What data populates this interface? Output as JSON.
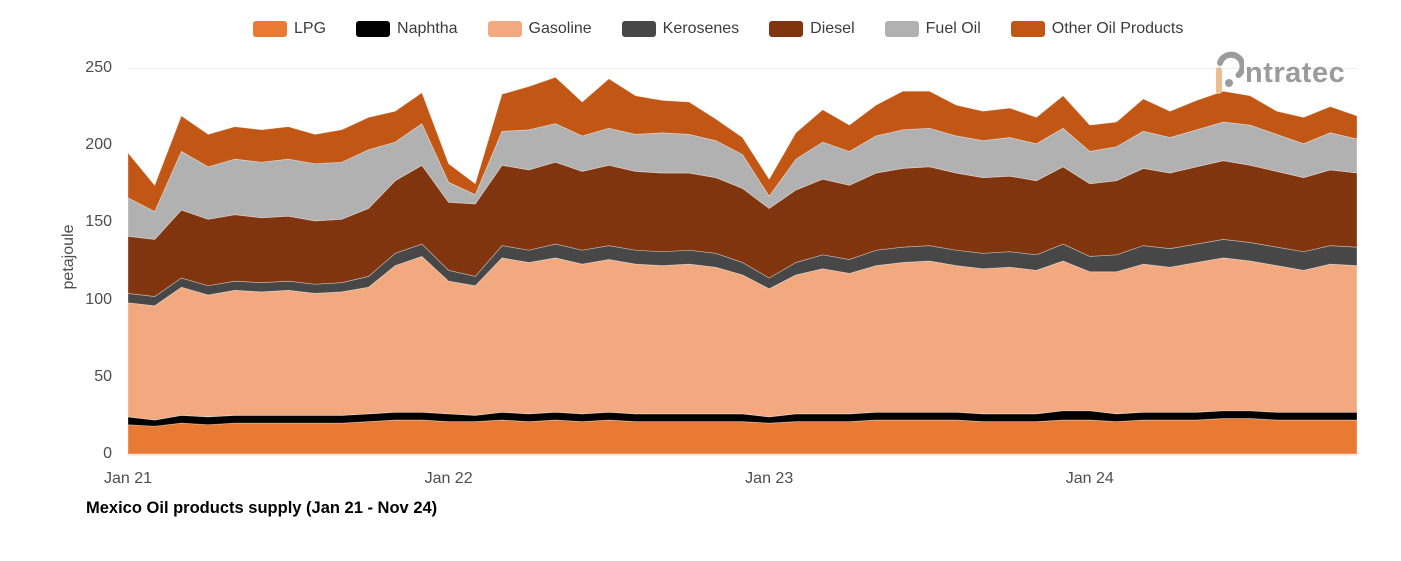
{
  "logo": {
    "text": "ntratec",
    "brand": "intratec",
    "mark_bar_color": "#EDBE92",
    "mark_gray": "#9B9B9B"
  },
  "axes": {
    "y_ticks": [
      "0",
      "50",
      "100",
      "150",
      "200",
      "250"
    ],
    "x_ticks": [
      {
        "label": "Jan 21",
        "month_index": 0
      },
      {
        "label": "Jan 22",
        "month_index": 12
      },
      {
        "label": "Jan 23",
        "month_index": 24
      },
      {
        "label": "Jan 24",
        "month_index": 36
      }
    ]
  },
  "chart_data": {
    "type": "area",
    "stacked": true,
    "title": "Mexico Oil products supply (Jan 21 - Nov 24)",
    "xlabel": "",
    "ylabel": "petajoule",
    "ylim": [
      0,
      250
    ],
    "grid": "off",
    "legend_position": "top",
    "x": [
      "Jan 21",
      "Feb 21",
      "Mar 21",
      "Apr 21",
      "May 21",
      "Jun 21",
      "Jul 21",
      "Aug 21",
      "Sep 21",
      "Oct 21",
      "Nov 21",
      "Dec 21",
      "Jan 22",
      "Feb 22",
      "Mar 22",
      "Apr 22",
      "May 22",
      "Jun 22",
      "Jul 22",
      "Aug 22",
      "Sep 22",
      "Oct 22",
      "Nov 22",
      "Dec 22",
      "Jan 23",
      "Feb 23",
      "Mar 23",
      "Apr 23",
      "May 23",
      "Jun 23",
      "Jul 23",
      "Aug 23",
      "Sep 23",
      "Oct 23",
      "Nov 23",
      "Dec 23",
      "Jan 24",
      "Feb 24",
      "Mar 24",
      "Apr 24",
      "May 24",
      "Jun 24",
      "Jul 24",
      "Aug 24",
      "Sep 24",
      "Oct 24",
      "Nov 24"
    ],
    "series": [
      {
        "name": "LPG",
        "color": "#E87A33",
        "values": [
          19,
          18,
          20,
          19,
          20,
          20,
          20,
          20,
          20,
          21,
          22,
          22,
          21,
          21,
          22,
          21,
          22,
          21,
          22,
          21,
          21,
          21,
          21,
          21,
          20,
          21,
          21,
          21,
          22,
          22,
          22,
          22,
          21,
          21,
          21,
          22,
          22,
          21,
          22,
          22,
          22,
          23,
          23,
          22,
          22,
          22,
          22
        ]
      },
      {
        "name": "Naphtha",
        "color": "#000000",
        "values": [
          5,
          4,
          5,
          5,
          5,
          5,
          5,
          5,
          5,
          5,
          5,
          5,
          5,
          4,
          5,
          5,
          5,
          5,
          5,
          5,
          5,
          5,
          5,
          5,
          4,
          5,
          5,
          5,
          5,
          5,
          5,
          5,
          5,
          5,
          5,
          6,
          6,
          5,
          5,
          5,
          5,
          5,
          5,
          5,
          5,
          5,
          5
        ]
      },
      {
        "name": "Gasoline",
        "color": "#F2A97F",
        "values": [
          74,
          74,
          83,
          79,
          81,
          80,
          81,
          79,
          80,
          82,
          95,
          101,
          86,
          84,
          100,
          98,
          100,
          97,
          99,
          97,
          96,
          97,
          95,
          90,
          83,
          90,
          94,
          91,
          95,
          97,
          98,
          95,
          94,
          95,
          93,
          97,
          90,
          92,
          96,
          94,
          97,
          99,
          97,
          95,
          92,
          96,
          95
        ]
      },
      {
        "name": "Kerosenes",
        "color": "#474747",
        "values": [
          6,
          6,
          6,
          6,
          6,
          6,
          6,
          6,
          6,
          7,
          8,
          8,
          7,
          6,
          8,
          8,
          9,
          9,
          9,
          9,
          9,
          9,
          9,
          8,
          7,
          8,
          9,
          9,
          10,
          10,
          10,
          10,
          10,
          10,
          10,
          11,
          10,
          11,
          12,
          12,
          12,
          12,
          12,
          12,
          12,
          12,
          12
        ]
      },
      {
        "name": "Diesel",
        "color": "#80350E",
        "values": [
          37,
          37,
          44,
          43,
          43,
          42,
          42,
          41,
          41,
          44,
          47,
          51,
          44,
          47,
          52,
          52,
          53,
          51,
          52,
          51,
          51,
          50,
          49,
          48,
          45,
          47,
          49,
          48,
          50,
          51,
          51,
          50,
          49,
          49,
          48,
          50,
          47,
          48,
          50,
          49,
          50,
          51,
          50,
          49,
          48,
          49,
          48
        ]
      },
      {
        "name": "Fuel Oil",
        "color": "#B1B1B1",
        "values": [
          25,
          18,
          38,
          34,
          36,
          36,
          37,
          37,
          37,
          38,
          25,
          27,
          13,
          6,
          22,
          26,
          25,
          23,
          24,
          24,
          26,
          25,
          24,
          22,
          8,
          20,
          24,
          22,
          24,
          25,
          25,
          24,
          24,
          25,
          24,
          25,
          21,
          22,
          24,
          23,
          24,
          25,
          26,
          24,
          22,
          24,
          22
        ]
      },
      {
        "name": "Other Oil Products",
        "color": "#C25715",
        "values": [
          29,
          17,
          23,
          21,
          21,
          21,
          21,
          19,
          21,
          21,
          20,
          20,
          12,
          7,
          24,
          28,
          30,
          22,
          32,
          25,
          21,
          21,
          14,
          11,
          11,
          17,
          21,
          17,
          20,
          25,
          24,
          20,
          19,
          19,
          17,
          21,
          17,
          16,
          21,
          17,
          19,
          20,
          19,
          15,
          17,
          17,
          15
        ]
      }
    ]
  }
}
